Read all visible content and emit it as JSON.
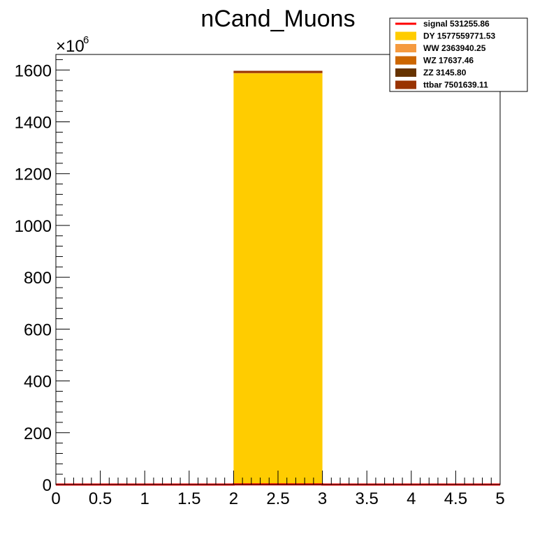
{
  "chart_data": {
    "type": "bar",
    "title": "nCand_Muons",
    "xlabel": "",
    "ylabel": "",
    "xlim": [
      0,
      5
    ],
    "ylim": [
      0,
      1660
    ],
    "y_multiplier": {
      "base": "×10",
      "exponent": "6"
    },
    "x_ticks": [
      0,
      0.5,
      1,
      1.5,
      2,
      2.5,
      3,
      3.5,
      4,
      4.5,
      5
    ],
    "x_tick_labels": [
      "0",
      "0.5",
      "1",
      "1.5",
      "2",
      "2.5",
      "3",
      "3.5",
      "4",
      "4.5",
      "5"
    ],
    "y_ticks": [
      0,
      200,
      400,
      600,
      800,
      1000,
      1200,
      1400,
      1600
    ],
    "y_tick_labels": [
      "0",
      "200",
      "400",
      "600",
      "800",
      "1000",
      "1200",
      "1400",
      "1600"
    ],
    "bins": {
      "edges": [
        0,
        1,
        2,
        3,
        4,
        5
      ]
    },
    "series": [
      {
        "name": "DY 1577559771.53",
        "color": "#ffcc00",
        "style": "fill",
        "values": [
          0,
          0,
          1587,
          0,
          0
        ]
      },
      {
        "name": "WW 2363940.25",
        "color": "#f59a3f",
        "style": "fill",
        "values": [
          0,
          0,
          2.36,
          0,
          0
        ]
      },
      {
        "name": "WZ 17637.46",
        "color": "#cc6600",
        "style": "fill",
        "values": [
          0,
          0,
          0.018,
          0,
          0
        ]
      },
      {
        "name": "ZZ 3145.80",
        "color": "#663300",
        "style": "fill",
        "values": [
          0,
          0,
          0.003,
          0,
          0
        ]
      },
      {
        "name": "ttbar 7501639.11",
        "color": "#993300",
        "style": "fill",
        "values": [
          0,
          0,
          7.5,
          0,
          0
        ]
      },
      {
        "name": "signal 531255.86",
        "color": "#ff0000",
        "style": "line",
        "values": [
          0,
          0,
          0.53,
          0,
          0
        ]
      }
    ],
    "legend_order": [
      5,
      0,
      1,
      2,
      3,
      4
    ],
    "legend_position": "top-right",
    "grid": false
  }
}
